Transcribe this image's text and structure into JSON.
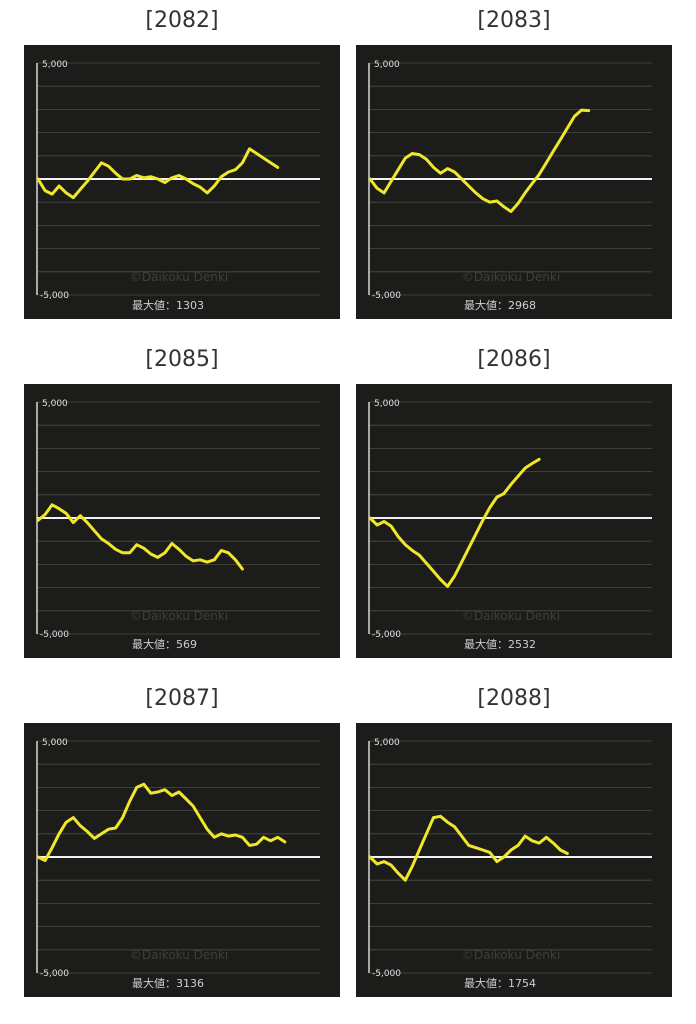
{
  "chart_data": [
    {
      "type": "line",
      "title": "[2082]",
      "ylim": [
        -5000,
        5000
      ],
      "yticks": [
        "5,000",
        "-5,000"
      ],
      "watermark": "©Daikoku Denki",
      "max_label": "最大値：1303",
      "color": "#f0e62a",
      "grid": true,
      "x": [
        0,
        50,
        100,
        150,
        200,
        250,
        300,
        350,
        400,
        450,
        500,
        550,
        600,
        650,
        700,
        750,
        800,
        850,
        900,
        950,
        1000,
        1050,
        1100,
        1150,
        1200,
        1250,
        1300,
        1350,
        1400,
        1450,
        1500,
        1550,
        1600,
        1650,
        1700,
        1750,
        1800,
        1850,
        1900,
        1950,
        2000
      ],
      "values": [
        0,
        -500,
        -650,
        -300,
        -600,
        -800,
        -450,
        -100,
        300,
        700,
        550,
        250,
        0,
        0,
        150,
        50,
        100,
        0,
        -150,
        50,
        150,
        0,
        -200,
        -350,
        -600,
        -300,
        100,
        300,
        400,
        700,
        1303,
        1100,
        900,
        700,
        500,
        null,
        null,
        null,
        null,
        null,
        null
      ]
    },
    {
      "type": "line",
      "title": "[2083]",
      "ylim": [
        -5000,
        5000
      ],
      "yticks": [
        "5,000",
        "-5,000"
      ],
      "watermark": "©Daikoku Denki",
      "max_label": "最大値：2968",
      "color": "#f0e62a",
      "grid": true,
      "x": [
        0,
        50,
        100,
        150,
        200,
        250,
        300,
        350,
        400,
        450,
        500,
        550,
        600,
        650,
        700,
        750,
        800,
        850,
        900,
        950,
        1000,
        1050,
        1100,
        1150,
        1200,
        1250,
        1300,
        1350,
        1400,
        1450,
        1500,
        1550,
        1600,
        1650,
        1700,
        1750,
        1800
      ],
      "values": [
        0,
        -400,
        -600,
        -100,
        400,
        900,
        1100,
        1050,
        850,
        500,
        250,
        450,
        300,
        0,
        -300,
        -600,
        -850,
        -1000,
        -950,
        -1200,
        -1400,
        -1050,
        -600,
        -200,
        200,
        700,
        1200,
        1700,
        2200,
        2700,
        2968,
        2950,
        null,
        null,
        null,
        null,
        null
      ]
    },
    {
      "type": "line",
      "title": "[2085]",
      "ylim": [
        -5000,
        5000
      ],
      "yticks": [
        "5,000",
        "-5,000"
      ],
      "watermark": "©Daikoku Denki",
      "max_label": "最大値：569",
      "color": "#f0e62a",
      "grid": true,
      "x": [
        0,
        50,
        100,
        150,
        200,
        250,
        300,
        350,
        400,
        450,
        500,
        550,
        600,
        650,
        700,
        750,
        800,
        850,
        900,
        950,
        1000,
        1050,
        1100,
        1150,
        1200,
        1250,
        1300,
        1350,
        1400,
        1450,
        1500,
        1550,
        1600,
        1650,
        1700,
        1750,
        1800
      ],
      "values": [
        -100,
        150,
        569,
        400,
        200,
        -200,
        100,
        -200,
        -550,
        -900,
        -1100,
        -1350,
        -1500,
        -1500,
        -1150,
        -1300,
        -1550,
        -1700,
        -1500,
        -1100,
        -1350,
        -1650,
        -1850,
        -1800,
        -1900,
        -1800,
        -1400,
        -1500,
        -1800,
        -2200,
        null,
        null,
        null,
        null,
        null,
        null,
        null
      ]
    },
    {
      "type": "line",
      "title": "[2086]",
      "ylim": [
        -5000,
        5000
      ],
      "yticks": [
        "5,000",
        "-5,000"
      ],
      "watermark": "©Daikoku Denki",
      "max_label": "最大値：2532",
      "color": "#f0e62a",
      "grid": true,
      "x": [
        0,
        50,
        100,
        150,
        200,
        250,
        300,
        350,
        400,
        450,
        500,
        550,
        600,
        650,
        700,
        750,
        800,
        850,
        900,
        950,
        1000,
        1050,
        1100,
        1150,
        1200,
        1250,
        1300,
        1350,
        1400,
        1450,
        1500,
        1550,
        1600,
        1650,
        1700,
        1750,
        1800
      ],
      "values": [
        0,
        -300,
        -150,
        -350,
        -800,
        -1150,
        -1400,
        -1600,
        -1950,
        -2300,
        -2650,
        -2950,
        -2500,
        -1900,
        -1300,
        -700,
        -100,
        450,
        900,
        1050,
        1450,
        1800,
        2150,
        2350,
        2532,
        null,
        null,
        null,
        null,
        null,
        null,
        null,
        null,
        null,
        null,
        null,
        null
      ]
    },
    {
      "type": "line",
      "title": "[2087]",
      "ylim": [
        -5000,
        5000
      ],
      "yticks": [
        "5,000",
        "-5,000"
      ],
      "watermark": "©Daikoku Denki",
      "max_label": "最大値：3136",
      "color": "#f0e62a",
      "grid": true,
      "x": [
        0,
        50,
        100,
        150,
        200,
        250,
        300,
        350,
        400,
        450,
        500,
        550,
        600,
        650,
        700,
        750,
        800,
        850,
        900,
        950,
        1000,
        1050,
        1100,
        1150,
        1200,
        1250,
        1300,
        1350,
        1400,
        1450,
        1500,
        1550,
        1600,
        1650,
        1700,
        1750,
        1800
      ],
      "values": [
        0,
        -150,
        400,
        1000,
        1500,
        1700,
        1350,
        1100,
        800,
        1000,
        1200,
        1250,
        1700,
        2400,
        3000,
        3136,
        2750,
        2800,
        2900,
        2650,
        2800,
        2500,
        2200,
        1700,
        1200,
        850,
        1000,
        900,
        950,
        850,
        500,
        550,
        850,
        700,
        850,
        650,
        null
      ]
    },
    {
      "type": "line",
      "title": "[2088]",
      "ylim": [
        -5000,
        5000
      ],
      "yticks": [
        "5,000",
        "-5,000"
      ],
      "watermark": "©Daikoku Denki",
      "max_label": "最大値：1754",
      "color": "#f0e62a",
      "grid": true,
      "x": [
        0,
        50,
        100,
        150,
        200,
        250,
        300,
        350,
        400,
        450,
        500,
        550,
        600,
        650,
        700,
        750,
        800,
        850,
        900,
        950,
        1000,
        1050,
        1100,
        1150,
        1200,
        1250,
        1300,
        1350,
        1400,
        1450,
        1500,
        1550,
        1600,
        1650,
        1700,
        1750,
        1800
      ],
      "values": [
        0,
        -300,
        -200,
        -350,
        -700,
        -1000,
        -400,
        300,
        1000,
        1700,
        1754,
        1500,
        1300,
        900,
        500,
        400,
        300,
        200,
        -200,
        0,
        300,
        500,
        900,
        700,
        600,
        850,
        600,
        300,
        150,
        null,
        null,
        null,
        null,
        null,
        null,
        null,
        null
      ]
    }
  ]
}
